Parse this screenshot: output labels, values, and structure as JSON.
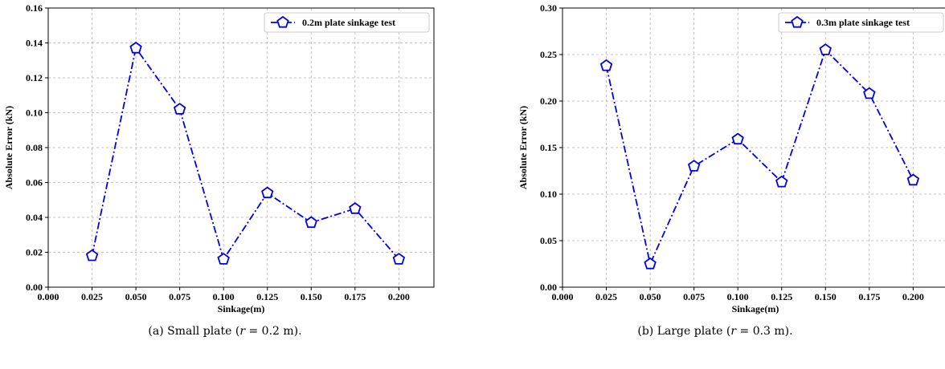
{
  "chart_data": [
    {
      "type": "line",
      "xlabel": "Sinkage(m)",
      "ylabel": "Absolute Error (kN)",
      "xlim": [
        0.0,
        0.22
      ],
      "ylim": [
        0.0,
        0.16
      ],
      "xticks": [
        "0.000",
        "0.025",
        "0.050",
        "0.075",
        "0.100",
        "0.125",
        "0.150",
        "0.175",
        "0.200"
      ],
      "yticks": [
        "0.00",
        "0.02",
        "0.04",
        "0.06",
        "0.08",
        "0.10",
        "0.12",
        "0.14",
        "0.16"
      ],
      "grid": true,
      "legend_position": "top-right",
      "series": [
        {
          "name": "0.2m plate sinkage test",
          "color": "#0000ee",
          "marker": "pentagon",
          "line_style": "dash-dot",
          "x": [
            0.025,
            0.05,
            0.075,
            0.1,
            0.125,
            0.15,
            0.175,
            0.2
          ],
          "y": [
            0.018,
            0.137,
            0.102,
            0.016,
            0.054,
            0.037,
            0.045,
            0.016
          ]
        }
      ]
    },
    {
      "type": "line",
      "xlabel": "Sinkage(m)",
      "ylabel": "Absolute Error (kN)",
      "xlim": [
        0.0,
        0.22
      ],
      "ylim": [
        0.0,
        0.3
      ],
      "xticks": [
        "0.000",
        "0.025",
        "0.050",
        "0.075",
        "0.100",
        "0.125",
        "0.150",
        "0.175",
        "0.200"
      ],
      "yticks": [
        "0.00",
        "0.05",
        "0.10",
        "0.15",
        "0.20",
        "0.25",
        "0.30"
      ],
      "grid": true,
      "legend_position": "top-right",
      "series": [
        {
          "name": "0.3m plate sinkage test",
          "color": "#0000ee",
          "marker": "pentagon",
          "line_style": "dash-dot",
          "x": [
            0.025,
            0.05,
            0.075,
            0.1,
            0.125,
            0.15,
            0.175,
            0.2
          ],
          "y": [
            0.238,
            0.025,
            0.13,
            0.159,
            0.113,
            0.255,
            0.208,
            0.115
          ]
        }
      ]
    }
  ],
  "captions": [
    {
      "prefix": "(a) Small plate (",
      "var": "r",
      "suffix": " = 0.2 m)."
    },
    {
      "prefix": "(b) Large plate (",
      "var": "r",
      "suffix": " = 0.3 m)."
    }
  ]
}
